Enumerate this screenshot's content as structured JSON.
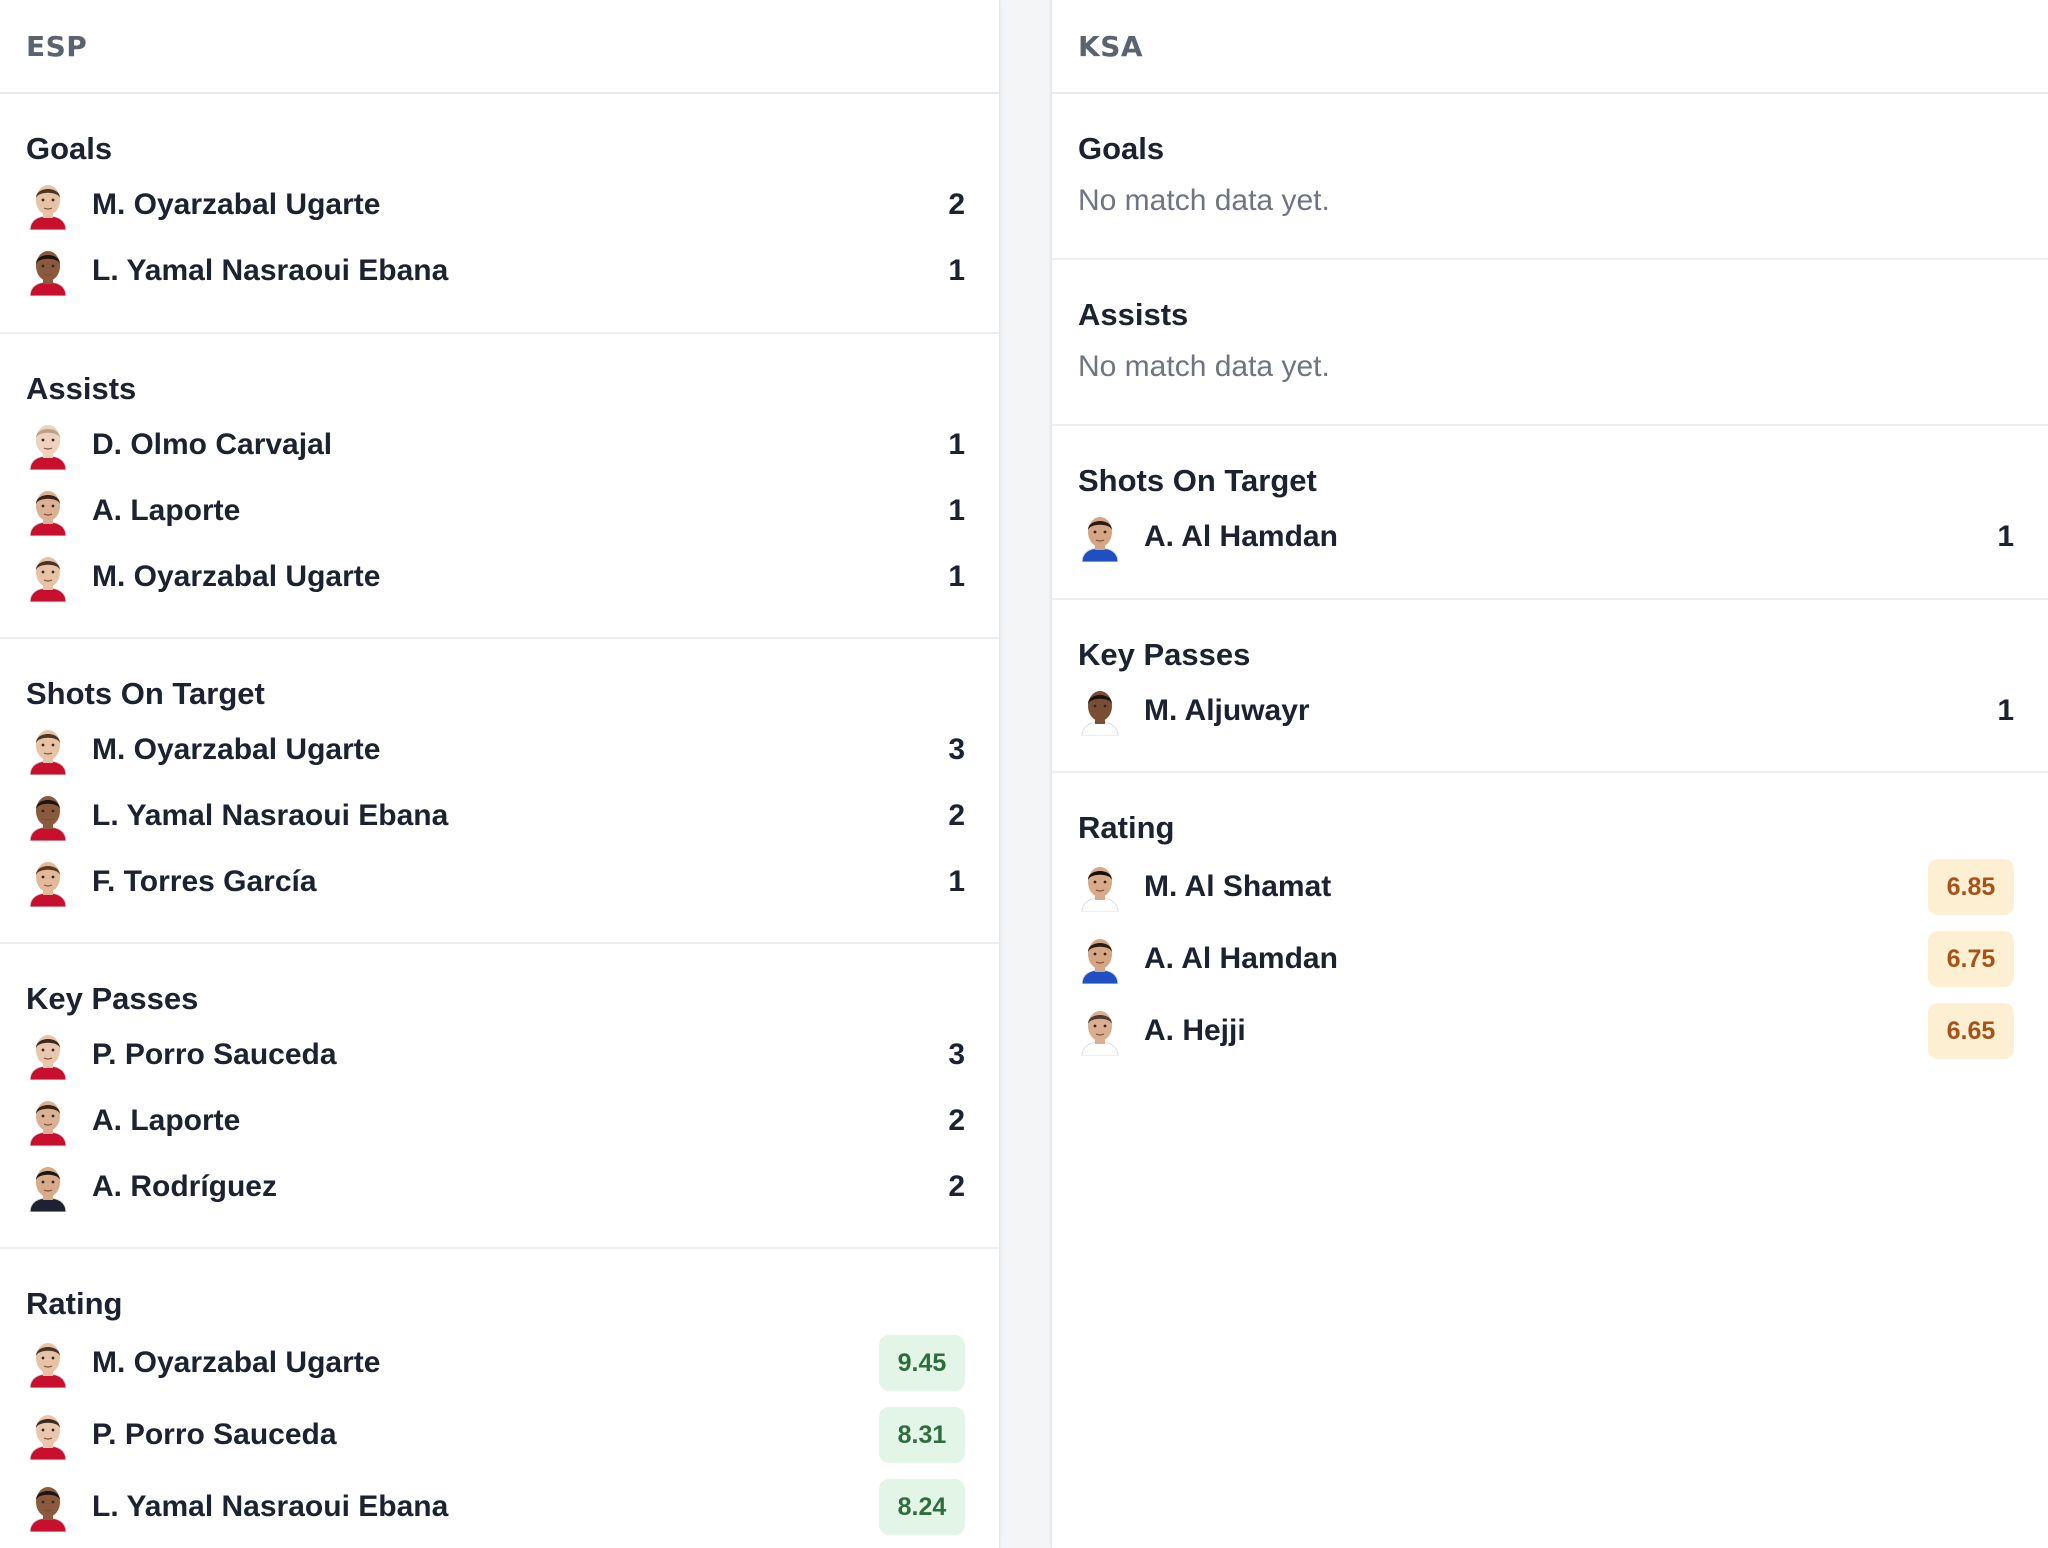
{
  "esp": {
    "team": "ESP",
    "goals": {
      "title": "Goals",
      "rows": [
        {
          "name": "M. Oyarzabal Ugarte",
          "value": "2"
        },
        {
          "name": "L. Yamal Nasraoui Ebana",
          "value": "1"
        }
      ]
    },
    "assists": {
      "title": "Assists",
      "rows": [
        {
          "name": "D. Olmo Carvajal",
          "value": "1"
        },
        {
          "name": "A. Laporte",
          "value": "1"
        },
        {
          "name": "M. Oyarzabal Ugarte",
          "value": "1"
        }
      ]
    },
    "shots": {
      "title": "Shots On Target",
      "rows": [
        {
          "name": "M. Oyarzabal Ugarte",
          "value": "3"
        },
        {
          "name": "L. Yamal Nasraoui Ebana",
          "value": "2"
        },
        {
          "name": "F. Torres García",
          "value": "1"
        }
      ]
    },
    "keypasses": {
      "title": "Key Passes",
      "rows": [
        {
          "name": "P. Porro Sauceda",
          "value": "3"
        },
        {
          "name": "A. Laporte",
          "value": "2"
        },
        {
          "name": "A. Rodríguez",
          "value": "2"
        }
      ]
    },
    "rating": {
      "title": "Rating",
      "rows": [
        {
          "name": "M. Oyarzabal Ugarte",
          "value": "9.45"
        },
        {
          "name": "P. Porro Sauceda",
          "value": "8.31"
        },
        {
          "name": "L. Yamal Nasraoui Ebana",
          "value": "8.24"
        }
      ]
    }
  },
  "ksa": {
    "team": "KSA",
    "goals": {
      "title": "Goals",
      "empty": "No match data yet."
    },
    "assists": {
      "title": "Assists",
      "empty": "No match data yet."
    },
    "shots": {
      "title": "Shots On Target",
      "rows": [
        {
          "name": "A. Al Hamdan",
          "value": "1"
        }
      ]
    },
    "keypasses": {
      "title": "Key Passes",
      "rows": [
        {
          "name": "M. Aljuwayr",
          "value": "1"
        }
      ]
    },
    "rating": {
      "title": "Rating",
      "rows": [
        {
          "name": "M. Al Shamat",
          "value": "6.85"
        },
        {
          "name": "A. Al Hamdan",
          "value": "6.75"
        },
        {
          "name": "A. Hejji",
          "value": "6.65"
        }
      ]
    }
  },
  "colors": {
    "rating_high_bg": "#e3f5e6",
    "rating_high_text": "#2e6e3c",
    "rating_mid_bg": "#fcefd2",
    "rating_mid_text": "#a8521a"
  },
  "icons": {
    "player": "player-avatar-icon"
  }
}
